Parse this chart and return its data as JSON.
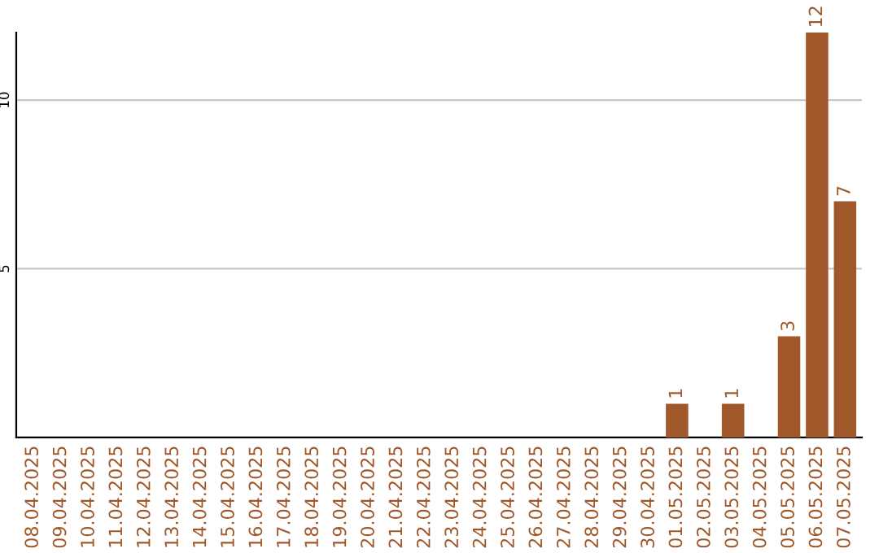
{
  "chart_data": {
    "type": "bar",
    "categories": [
      "08.04.2025",
      "09.04.2025",
      "10.04.2025",
      "11.04.2025",
      "12.04.2025",
      "13.04.2025",
      "14.04.2025",
      "15.04.2025",
      "16.04.2025",
      "17.04.2025",
      "18.04.2025",
      "19.04.2025",
      "20.04.2025",
      "21.04.2025",
      "22.04.2025",
      "23.04.2025",
      "24.04.2025",
      "25.04.2025",
      "26.04.2025",
      "27.04.2025",
      "28.04.2025",
      "29.04.2025",
      "30.04.2025",
      "01.05.2025",
      "02.05.2025",
      "03.05.2025",
      "04.05.2025",
      "05.05.2025",
      "06.05.2025",
      "07.05.2025"
    ],
    "values": [
      0,
      0,
      0,
      0,
      0,
      0,
      0,
      0,
      0,
      0,
      0,
      0,
      0,
      0,
      0,
      0,
      0,
      0,
      0,
      0,
      0,
      0,
      0,
      1,
      0,
      1,
      0,
      3,
      12,
      7
    ],
    "value_labels": [
      null,
      null,
      null,
      null,
      null,
      null,
      null,
      null,
      null,
      null,
      null,
      null,
      null,
      null,
      null,
      null,
      null,
      null,
      null,
      null,
      null,
      null,
      null,
      "1",
      null,
      "1",
      null,
      "3",
      "12",
      "7"
    ],
    "color": "#a0582a",
    "ylim": [
      0,
      12
    ],
    "yticks": [
      5,
      10
    ],
    "grid": "y"
  }
}
